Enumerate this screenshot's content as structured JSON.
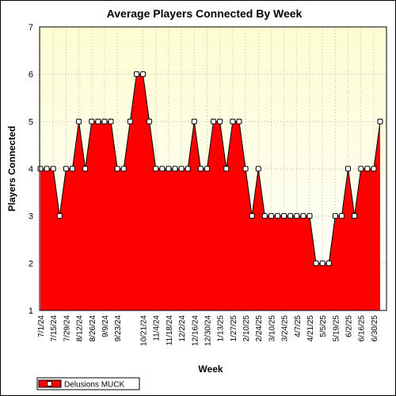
{
  "chart_data": {
    "type": "area",
    "title": "Average Players Connected By Week",
    "xlabel": "Week",
    "ylabel": "Players Connected",
    "ylim": [
      1,
      7
    ],
    "yticks": [
      "1",
      "2",
      "3",
      "4",
      "5",
      "6",
      "7"
    ],
    "x_tick_labels": [
      "7/1/24",
      "7/15/24",
      "7/29/24",
      "8/12/24",
      "8/26/24",
      "9/9/24",
      "9/23/24",
      "10/21/24",
      "11/4/24",
      "11/18/24",
      "12/2/24",
      "12/16/24",
      "12/30/24",
      "1/13/25",
      "1/27/25",
      "2/10/25",
      "2/24/25",
      "3/10/25",
      "3/24/25",
      "4/7/25",
      "4/21/25",
      "5/5/25",
      "5/19/25",
      "6/2/25",
      "6/16/25",
      "6/30/25"
    ],
    "grid": true,
    "legend_position": "bottom-left",
    "series": [
      {
        "name": "Delusions MUCK",
        "color": "#ff0000",
        "x": [
          "7/1/24",
          "7/8/24",
          "7/15/24",
          "7/22/24",
          "7/29/24",
          "8/5/24",
          "8/12/24",
          "8/19/24",
          "8/26/24",
          "9/2/24",
          "9/9/24",
          "9/16/24",
          "9/23/24",
          "9/30/24",
          "10/7/24",
          "10/14/24",
          "10/21/24",
          "10/28/24",
          "11/4/24",
          "11/11/24",
          "11/18/24",
          "11/25/24",
          "12/2/24",
          "12/9/24",
          "12/16/24",
          "12/23/24",
          "12/30/24",
          "1/6/25",
          "1/13/25",
          "1/20/25",
          "1/27/25",
          "2/3/25",
          "2/10/25",
          "2/17/25",
          "2/24/25",
          "3/3/25",
          "3/10/25",
          "3/17/25",
          "3/24/25",
          "3/31/25",
          "4/7/25",
          "4/14/25",
          "4/21/25",
          "4/28/25",
          "5/5/25",
          "5/12/25",
          "5/19/25",
          "5/26/25",
          "6/2/25",
          "6/9/25",
          "6/16/25",
          "6/23/25",
          "6/30/25",
          "7/7/25"
        ],
        "values": [
          4,
          4,
          4,
          3,
          4,
          4,
          5,
          4,
          5,
          5,
          5,
          5,
          4,
          4,
          5,
          6,
          6,
          5,
          4,
          4,
          4,
          4,
          4,
          4,
          5,
          4,
          4,
          5,
          5,
          4,
          5,
          5,
          4,
          3,
          4,
          3,
          3,
          3,
          3,
          3,
          3,
          3,
          3,
          2,
          2,
          2,
          3,
          3,
          4,
          3,
          4,
          4,
          4,
          5
        ]
      }
    ]
  }
}
